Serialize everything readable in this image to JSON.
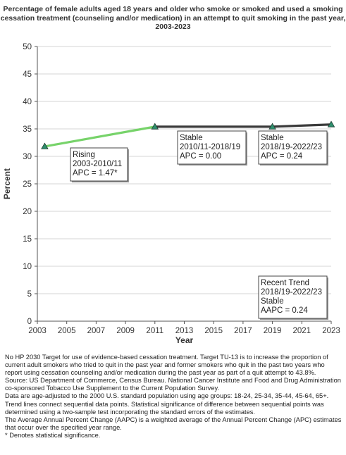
{
  "chart_data": {
    "type": "line",
    "title_lines": [
      "Percentage of  female adults  aged 18 years and older who smoke or smoked and used a smoking",
      "cessation treatment (counseling and/or medication) in an attempt to quit smoking in the past year,",
      "2003-2023"
    ],
    "xlabel": "Year",
    "ylabel": "Percent",
    "xlim": [
      2003,
      2023
    ],
    "ylim": [
      0,
      50
    ],
    "x_ticks": [
      "2003",
      "2005",
      "2007",
      "2009",
      "2011",
      "2013",
      "2015",
      "2017",
      "2019",
      "2021",
      "2023"
    ],
    "y_ticks": [
      "0",
      "5",
      "10",
      "15",
      "20",
      "25",
      "30",
      "35",
      "40",
      "45",
      "50"
    ],
    "points": [
      {
        "x": 2003.5,
        "y": 31.8
      },
      {
        "x": 2011,
        "y": 35.4
      },
      {
        "x": 2019,
        "y": 35.4
      },
      {
        "x": 2023,
        "y": 35.8
      }
    ],
    "trends": [
      {
        "from": 2003.5,
        "to": 2011,
        "y0": 31.8,
        "y1": 35.4,
        "color": "#77d36a"
      },
      {
        "from": 2011,
        "to": 2019,
        "y0": 35.4,
        "y1": 35.4,
        "color": "#3a3a3a"
      },
      {
        "from": 2019,
        "to": 2023,
        "y0": 35.4,
        "y1": 35.8,
        "color": "#3a3a3a"
      }
    ],
    "marker_color": "#2f8f6e",
    "annotations": [
      {
        "lines": [
          "Rising",
          "2003-2010/11",
          "APC =  1.47*"
        ]
      },
      {
        "lines": [
          "Stable",
          "2010/11-2018/19",
          "APC =  0.00"
        ]
      },
      {
        "lines": [
          "Stable",
          "2018/19-2022/23",
          "APC =  0.24"
        ]
      },
      {
        "lines": [
          "Recent Trend",
          "2018/19-2022/23",
          "Stable",
          "AAPC =  0.24"
        ]
      }
    ]
  },
  "footnotes": [
    "No HP 2030 Target for use of evidence-based cessation treatment. Target TU-13 is to increase the proportion of current adult smokers who tried to quit in the past year and former smokers who quit in the past two years who report using cessation counseling and/or medication during the past year as part of a quit attempt to 43.8%.",
    "Source: US Department of Commerce, Census Bureau. National Cancer Institute and Food and Drug Administration co-sponsored Tobacco Use Supplement to the Current Population Survey.",
    "Data are age-adjusted to the 2000 U.S. standard population using age groups: 18-24, 25-34, 35-44, 45-64, 65+.",
    "Trend lines connect sequential data points. Statistical significance of difference between sequential points was determined using a two-sample test incorporating the standard errors of the estimates.",
    "The Average Annual Percent Change (AAPC) is a weighted average of the Annual Percent Change (APC) estimates that occur over the specified year range.",
    "* Denotes statistical significance."
  ]
}
